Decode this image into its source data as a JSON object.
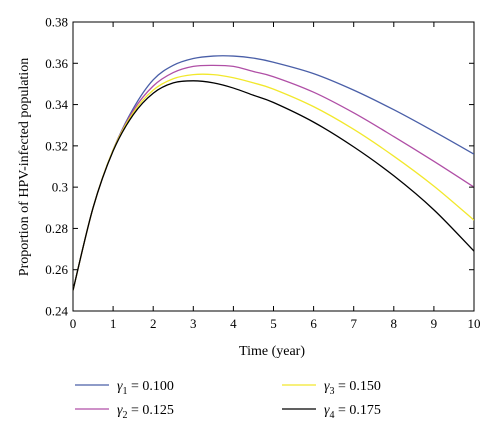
{
  "chart_data": {
    "type": "line",
    "title": "",
    "xlabel": "Time (year)",
    "ylabel": "Proportion of HPV-infected population",
    "xlim": [
      0,
      10
    ],
    "ylim": [
      0.24,
      0.38
    ],
    "xticks": [
      "0",
      "1",
      "2",
      "3",
      "4",
      "5",
      "6",
      "7",
      "8",
      "9",
      "10"
    ],
    "yticks": [
      "0.24",
      "0.26",
      "0.28",
      "0.3",
      "0.32",
      "0.34",
      "0.36",
      "0.38"
    ],
    "grid": false,
    "legend_position": "bottom",
    "series": [
      {
        "symbol": "γ",
        "subscript": "1",
        "value_text": " = 0.100",
        "color": "#4a5fa8",
        "x": [
          0,
          0.5,
          1,
          1.5,
          2,
          2.5,
          3,
          3.5,
          4,
          4.5,
          5,
          6,
          7,
          8,
          9,
          10
        ],
        "y": [
          0.25,
          0.29,
          0.318,
          0.338,
          0.352,
          0.359,
          0.3623,
          0.3635,
          0.3635,
          0.3625,
          0.3605,
          0.355,
          0.347,
          0.3375,
          0.327,
          0.316
        ]
      },
      {
        "symbol": "γ",
        "subscript": "2",
        "value_text": " = 0.125",
        "color": "#b04fa6",
        "x": [
          0,
          0.5,
          1,
          1.5,
          2,
          2.5,
          3,
          3.5,
          4,
          4.5,
          5,
          6,
          7,
          8,
          9,
          10
        ],
        "y": [
          0.25,
          0.29,
          0.318,
          0.337,
          0.349,
          0.3555,
          0.3585,
          0.359,
          0.3585,
          0.356,
          0.3535,
          0.346,
          0.336,
          0.3245,
          0.3125,
          0.3
        ]
      },
      {
        "symbol": "γ",
        "subscript": "3",
        "value_text": " = 0.150",
        "color": "#f2e82c",
        "x": [
          0,
          0.5,
          1,
          1.5,
          2,
          2.5,
          3,
          3.5,
          4,
          4.5,
          5,
          6,
          7,
          8,
          9,
          10
        ],
        "y": [
          0.25,
          0.29,
          0.318,
          0.336,
          0.347,
          0.3525,
          0.3545,
          0.3545,
          0.353,
          0.3505,
          0.3475,
          0.339,
          0.328,
          0.315,
          0.3005,
          0.284
        ]
      },
      {
        "symbol": "γ",
        "subscript": "4",
        "value_text": " = 0.175",
        "color": "#000000",
        "x": [
          0,
          0.5,
          1,
          1.5,
          2,
          2.5,
          3,
          3.5,
          4,
          4.5,
          5,
          6,
          7,
          8,
          9,
          10
        ],
        "y": [
          0.25,
          0.29,
          0.3175,
          0.335,
          0.3455,
          0.3505,
          0.3515,
          0.3505,
          0.348,
          0.3445,
          0.341,
          0.3315,
          0.3195,
          0.3055,
          0.289,
          0.269
        ]
      }
    ]
  }
}
